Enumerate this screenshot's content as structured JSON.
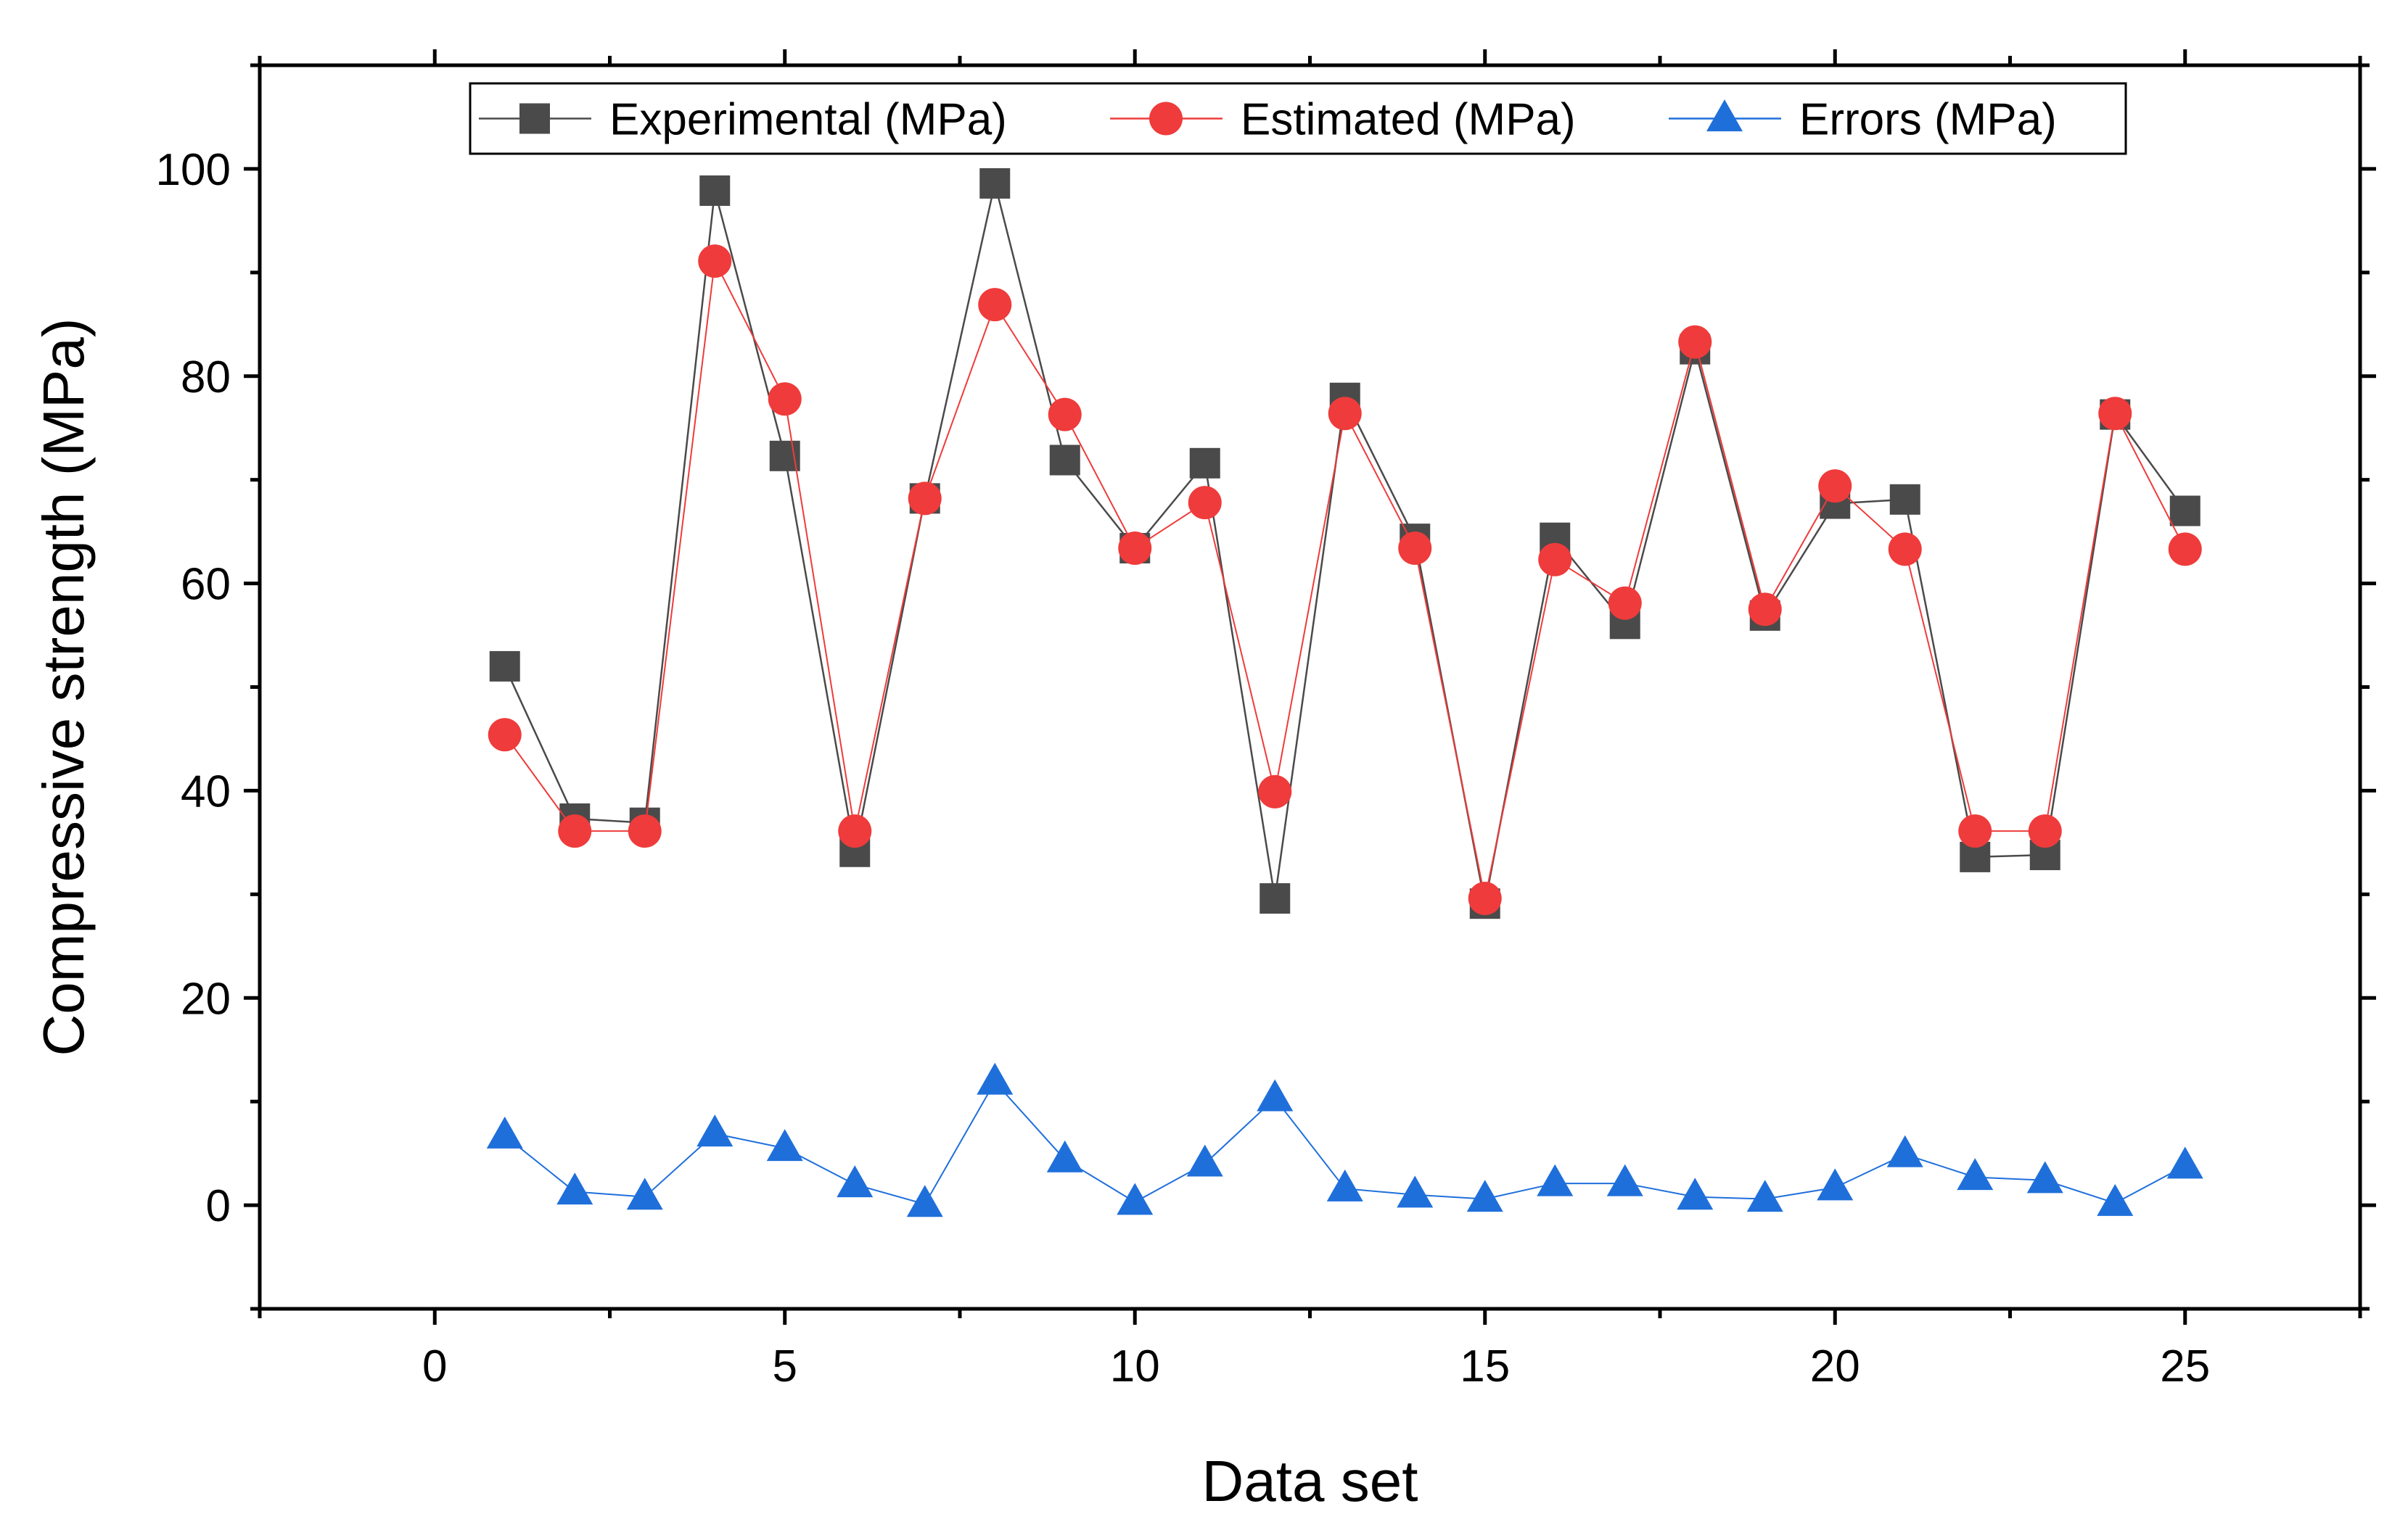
{
  "chart_data": {
    "type": "line",
    "title": "",
    "xlabel": "Data set",
    "ylabel": "Compressive strength (MPa)",
    "xlim": [
      -2.5,
      27.5
    ],
    "ylim": [
      -10,
      110
    ],
    "xticks": [
      0,
      5,
      10,
      15,
      20,
      25
    ],
    "yticks": [
      0,
      20,
      40,
      60,
      80,
      100
    ],
    "grid": false,
    "legend_position": "top-center",
    "x": [
      1,
      2,
      3,
      4,
      5,
      6,
      7,
      8,
      9,
      10,
      11,
      12,
      13,
      14,
      15,
      16,
      17,
      18,
      19,
      20,
      21,
      22,
      23,
      24,
      25
    ],
    "series": [
      {
        "name": "Experimental (MPa)",
        "color": "#4a4a4a",
        "marker": "square",
        "values": [
          52.0,
          37.3,
          36.9,
          97.9,
          72.3,
          34.1,
          68.2,
          98.6,
          71.9,
          63.4,
          71.6,
          29.6,
          77.9,
          64.3,
          29.1,
          64.4,
          56.1,
          82.6,
          56.9,
          67.7,
          68.1,
          33.6,
          33.8,
          76.3,
          67.0
        ]
      },
      {
        "name": "Estimated (MPa)",
        "color": "#ef3b3b",
        "marker": "circle",
        "values": [
          45.4,
          36.1,
          36.1,
          91.1,
          77.8,
          36.1,
          68.2,
          86.9,
          76.3,
          63.4,
          67.8,
          39.9,
          76.4,
          63.4,
          29.6,
          62.3,
          58.1,
          83.3,
          57.5,
          69.4,
          63.3,
          36.1,
          36.1,
          76.4,
          63.3
        ]
      },
      {
        "name": "Errors (MPa)",
        "color": "#1f6fdb",
        "marker": "triangle",
        "values": [
          6.7,
          1.3,
          0.8,
          6.9,
          5.5,
          2.0,
          0.1,
          11.9,
          4.4,
          0.3,
          4.0,
          10.3,
          1.6,
          1.0,
          0.6,
          2.1,
          2.1,
          0.8,
          0.6,
          1.7,
          4.9,
          2.7,
          2.4,
          0.2,
          3.8
        ]
      }
    ]
  }
}
